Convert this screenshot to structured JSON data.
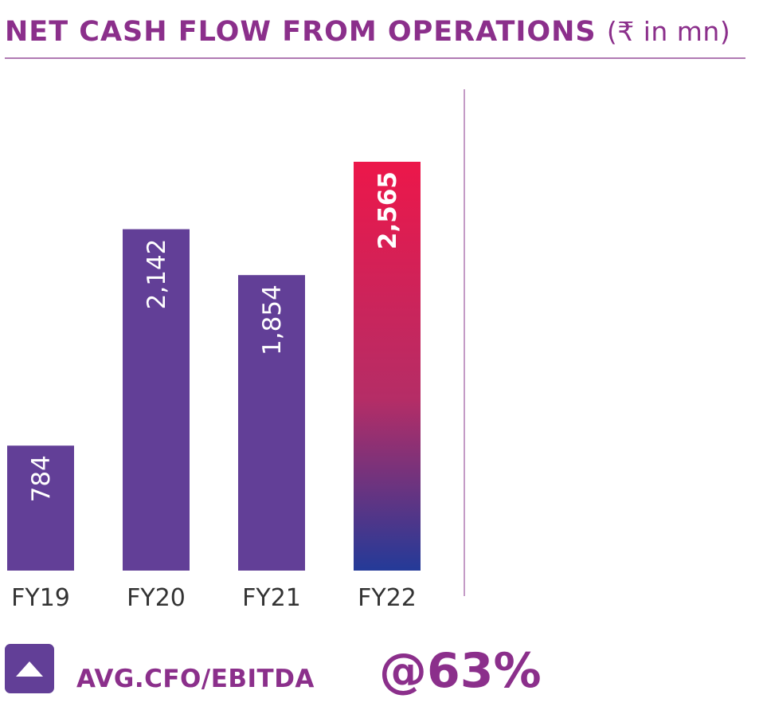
{
  "header": {
    "title": "NET CASH FLOW FROM OPERATIONS",
    "unit": "(₹ in mn)"
  },
  "colors": {
    "title": "#8b2f8b",
    "bar": "#623f97",
    "highlight_top": "#ec174a",
    "highlight_mid": "#b52d66",
    "highlight_bottom": "#243a98",
    "axis_text": "#333333",
    "divider": "#b07ab3",
    "callout": "#8b2f8b"
  },
  "chart_data": {
    "type": "bar",
    "categories": [
      "FY19",
      "FY20",
      "FY21",
      "FY22"
    ],
    "values": [
      784,
      2142,
      1854,
      2565
    ],
    "value_labels": [
      "784",
      "2,142",
      "1,854",
      "2,565"
    ],
    "highlight_index": 3,
    "ylim": [
      0,
      2700
    ],
    "grid": false,
    "title": "NET CASH FLOW FROM OPERATIONS",
    "xlabel": "",
    "ylabel": ""
  },
  "callout": {
    "icon": "up-arrow-icon",
    "label": "AVG.CFO/EBITDA",
    "value": "@63%"
  }
}
